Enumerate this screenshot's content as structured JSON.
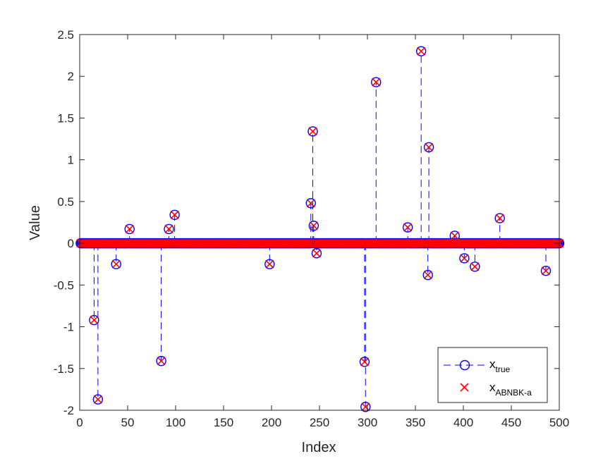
{
  "chart_data": {
    "type": "scatter",
    "xlabel": "Index",
    "ylabel": "Value",
    "xlim": [
      0,
      500
    ],
    "ylim": [
      -2,
      2.5
    ],
    "xticks": [
      0,
      50,
      100,
      150,
      200,
      250,
      300,
      350,
      400,
      450,
      500
    ],
    "xtick_labels": [
      "0",
      "50",
      "100",
      "150",
      "200",
      "250",
      "300",
      "350",
      "400",
      "450",
      "500"
    ],
    "yticks": [
      -2,
      -1.5,
      -1,
      -0.5,
      0,
      0.5,
      1,
      1.5,
      2,
      2.5
    ],
    "ytick_labels": [
      "-2",
      "-1.5",
      "-1",
      "-0.5",
      "0",
      "0.5",
      "1",
      "1.5",
      "2",
      "2.5"
    ],
    "grid": false,
    "legend_position": "bottom-right",
    "n_points": 500,
    "series": [
      {
        "name": "x",
        "subscript": "true",
        "marker": "circle",
        "line": "dashed stem",
        "color": "#0000ff"
      },
      {
        "name": "x",
        "subscript": "ABNBK-a",
        "marker": "x",
        "line": "none",
        "color": "#ff0000"
      }
    ],
    "nonzero": [
      {
        "x": 15,
        "y": -0.92
      },
      {
        "x": 19,
        "y": -1.87
      },
      {
        "x": 38,
        "y": -0.25
      },
      {
        "x": 52,
        "y": 0.17
      },
      {
        "x": 85,
        "y": -1.41
      },
      {
        "x": 93,
        "y": 0.17
      },
      {
        "x": 99,
        "y": 0.34
      },
      {
        "x": 198,
        "y": -0.25
      },
      {
        "x": 241,
        "y": 0.48
      },
      {
        "x": 243,
        "y": 1.34
      },
      {
        "x": 244,
        "y": 0.21
      },
      {
        "x": 247,
        "y": -0.12
      },
      {
        "x": 297,
        "y": -1.42
      },
      {
        "x": 298,
        "y": -1.96
      },
      {
        "x": 309,
        "y": 1.93
      },
      {
        "x": 342,
        "y": 0.19
      },
      {
        "x": 356,
        "y": 2.3
      },
      {
        "x": 363,
        "y": -0.38
      },
      {
        "x": 364,
        "y": 1.15
      },
      {
        "x": 391,
        "y": 0.09
      },
      {
        "x": 401,
        "y": -0.18
      },
      {
        "x": 412,
        "y": -0.28
      },
      {
        "x": 438,
        "y": 0.3
      },
      {
        "x": 486,
        "y": -0.33
      }
    ]
  }
}
